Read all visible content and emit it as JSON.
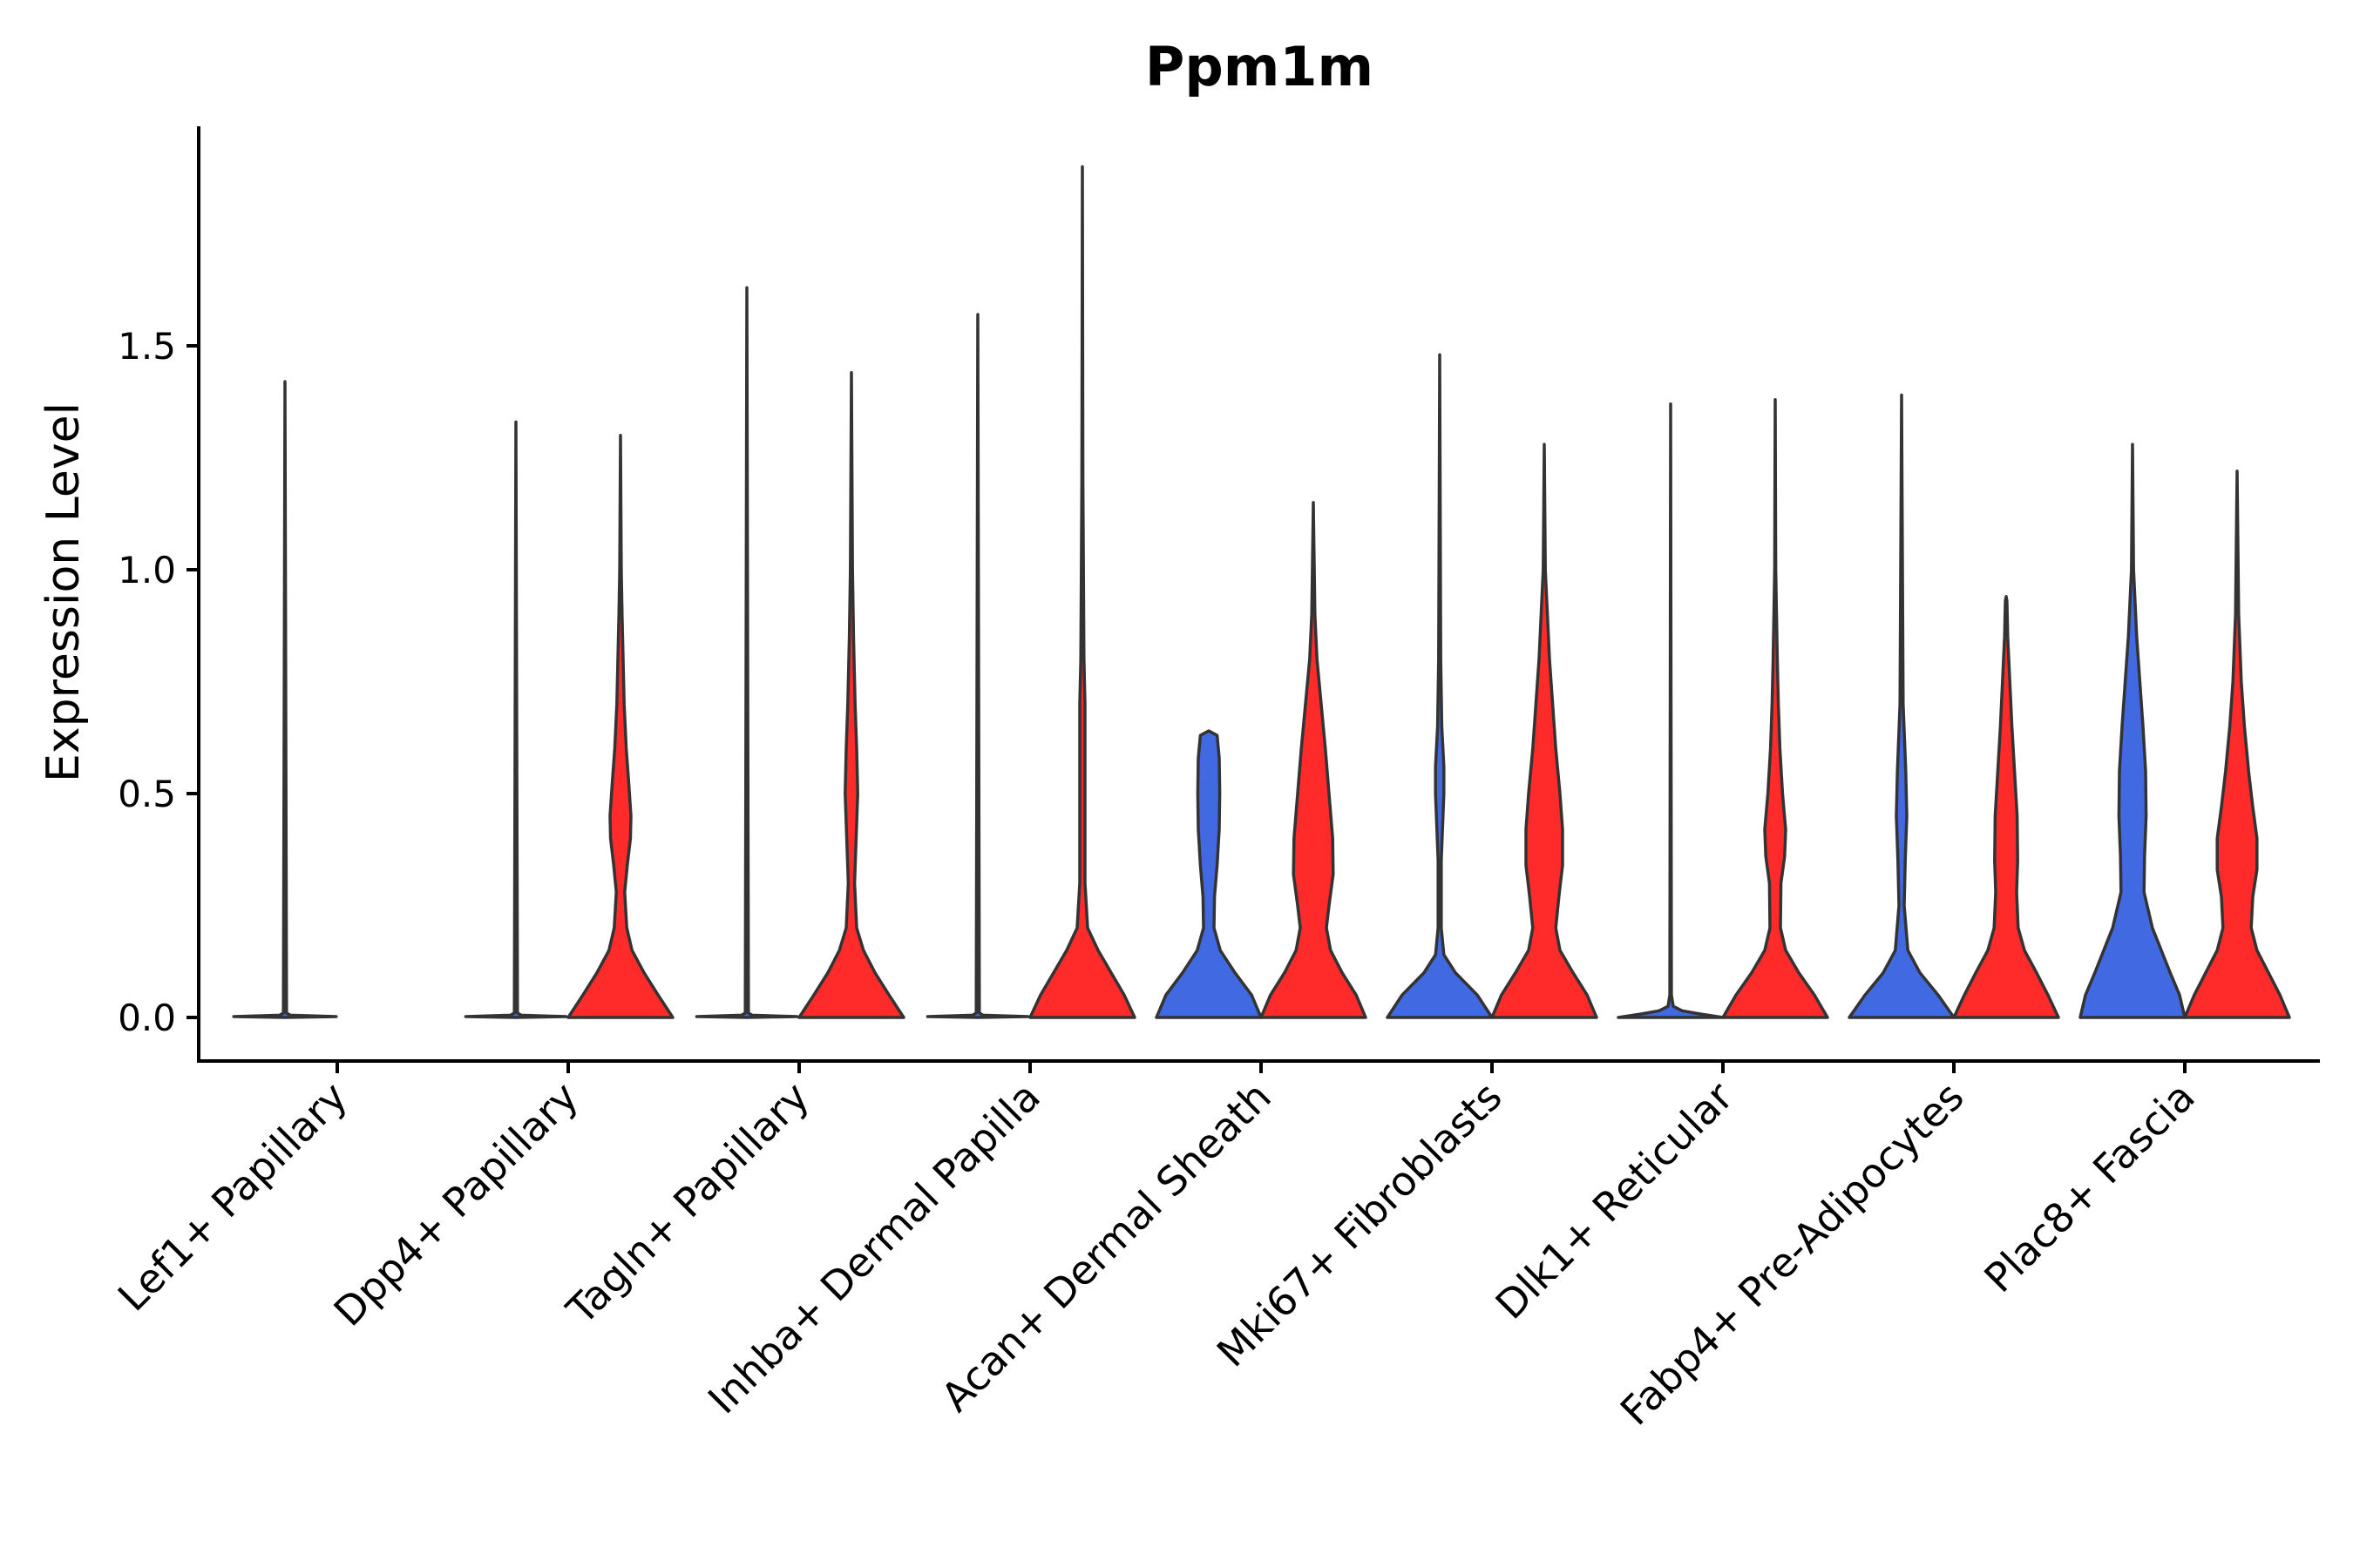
{
  "chart_data": {
    "type": "violin",
    "title": "Ppm1m",
    "xlabel": "",
    "ylabel": "Expression Level",
    "ylim": [
      -0.1,
      2.0
    ],
    "yticks": [
      0.0,
      0.5,
      1.0,
      1.5
    ],
    "ytick_labels": [
      "0.0",
      "0.5",
      "1.0",
      "1.5"
    ],
    "categories": [
      "Lef1+ Papillary",
      "Dpp4+ Papillary",
      "Tagln+ Papillary",
      "Inhba+ Dermal Papilla",
      "Acan+ Dermal Sheath",
      "Mki67+ Fibroblasts",
      "Dlk1+ Reticular",
      "Fabp4+ Pre-Adipocytes",
      "Plac8+ Fascia"
    ],
    "series": [
      {
        "name": "group-blue",
        "color": "#4169E1",
        "max_values": [
          1.42,
          1.33,
          1.63,
          1.57,
          0.64,
          1.48,
          1.37,
          1.39,
          1.28
        ],
        "profiles": [
          [
            [
              0,
              0.0
            ],
            [
              0.002,
              0.98
            ],
            [
              0.005,
              0.1
            ],
            [
              0.01,
              0.03
            ],
            [
              1.42,
              0.0
            ]
          ],
          [
            [
              0,
              0.0
            ],
            [
              0.002,
              0.96
            ],
            [
              0.005,
              0.1
            ],
            [
              0.01,
              0.03
            ],
            [
              1.33,
              0.0
            ]
          ],
          [
            [
              0,
              0.0
            ],
            [
              0.002,
              0.96
            ],
            [
              0.005,
              0.1
            ],
            [
              0.01,
              0.03
            ],
            [
              1.63,
              0.0
            ]
          ],
          [
            [
              0,
              0.0
            ],
            [
              0.002,
              0.96
            ],
            [
              0.005,
              0.1
            ],
            [
              0.01,
              0.03
            ],
            [
              1.57,
              0.0
            ]
          ],
          [
            [
              0,
              1.0
            ],
            [
              0.05,
              0.82
            ],
            [
              0.1,
              0.5
            ],
            [
              0.15,
              0.22
            ],
            [
              0.2,
              0.1
            ],
            [
              0.27,
              0.11
            ],
            [
              0.34,
              0.16
            ],
            [
              0.42,
              0.2
            ],
            [
              0.5,
              0.21
            ],
            [
              0.58,
              0.2
            ],
            [
              0.63,
              0.16
            ],
            [
              0.64,
              0.0
            ]
          ],
          [
            [
              0,
              1.0
            ],
            [
              0.05,
              0.72
            ],
            [
              0.1,
              0.3
            ],
            [
              0.14,
              0.08
            ],
            [
              0.2,
              0.03
            ],
            [
              0.35,
              0.03
            ],
            [
              0.5,
              0.08
            ],
            [
              0.56,
              0.08
            ],
            [
              0.65,
              0.04
            ],
            [
              0.8,
              0.02
            ],
            [
              1.48,
              0.0
            ]
          ],
          [
            [
              0,
              1.0
            ],
            [
              0.008,
              0.55
            ],
            [
              0.015,
              0.22
            ],
            [
              0.025,
              0.05
            ],
            [
              0.05,
              0.015
            ],
            [
              0.5,
              0.01
            ],
            [
              1.37,
              0.0
            ]
          ],
          [
            [
              0,
              1.0
            ],
            [
              0.05,
              0.7
            ],
            [
              0.1,
              0.35
            ],
            [
              0.15,
              0.12
            ],
            [
              0.25,
              0.05
            ],
            [
              0.35,
              0.07
            ],
            [
              0.45,
              0.1
            ],
            [
              0.55,
              0.08
            ],
            [
              0.7,
              0.03
            ],
            [
              1.39,
              0.0
            ]
          ],
          [
            [
              0,
              1.0
            ],
            [
              0.05,
              0.9
            ],
            [
              0.1,
              0.72
            ],
            [
              0.15,
              0.55
            ],
            [
              0.2,
              0.38
            ],
            [
              0.28,
              0.22
            ],
            [
              0.36,
              0.23
            ],
            [
              0.45,
              0.26
            ],
            [
              0.55,
              0.25
            ],
            [
              0.65,
              0.2
            ],
            [
              0.75,
              0.14
            ],
            [
              0.85,
              0.08
            ],
            [
              1.0,
              0.02
            ],
            [
              1.28,
              0.0
            ]
          ]
        ]
      },
      {
        "name": "group-red",
        "color": "#FF2A2A",
        "max_values": [
          null,
          1.3,
          1.44,
          1.9,
          1.15,
          1.28,
          1.38,
          0.94,
          1.22
        ],
        "profiles": [
          null,
          [
            [
              0,
              1.0
            ],
            [
              0.05,
              0.72
            ],
            [
              0.1,
              0.45
            ],
            [
              0.15,
              0.22
            ],
            [
              0.2,
              0.12
            ],
            [
              0.28,
              0.08
            ],
            [
              0.34,
              0.13
            ],
            [
              0.4,
              0.19
            ],
            [
              0.45,
              0.2
            ],
            [
              0.52,
              0.16
            ],
            [
              0.6,
              0.11
            ],
            [
              0.7,
              0.07
            ],
            [
              0.8,
              0.05
            ],
            [
              0.9,
              0.03
            ],
            [
              1.0,
              0.015
            ],
            [
              1.3,
              0.0
            ]
          ],
          [
            [
              0,
              1.0
            ],
            [
              0.05,
              0.72
            ],
            [
              0.1,
              0.45
            ],
            [
              0.15,
              0.23
            ],
            [
              0.2,
              0.1
            ],
            [
              0.3,
              0.06
            ],
            [
              0.4,
              0.09
            ],
            [
              0.5,
              0.12
            ],
            [
              0.6,
              0.1
            ],
            [
              0.7,
              0.07
            ],
            [
              0.85,
              0.04
            ],
            [
              1.0,
              0.02
            ],
            [
              1.44,
              0.0
            ]
          ],
          [
            [
              0,
              1.0
            ],
            [
              0.05,
              0.8
            ],
            [
              0.1,
              0.55
            ],
            [
              0.15,
              0.3
            ],
            [
              0.2,
              0.1
            ],
            [
              0.3,
              0.05
            ],
            [
              0.5,
              0.05
            ],
            [
              0.7,
              0.05
            ],
            [
              0.8,
              0.03
            ],
            [
              1.0,
              0.02
            ],
            [
              1.2,
              0.01
            ],
            [
              1.9,
              0.0
            ]
          ],
          [
            [
              0,
              1.0
            ],
            [
              0.05,
              0.82
            ],
            [
              0.1,
              0.55
            ],
            [
              0.15,
              0.33
            ],
            [
              0.2,
              0.25
            ],
            [
              0.25,
              0.3
            ],
            [
              0.32,
              0.38
            ],
            [
              0.4,
              0.37
            ],
            [
              0.5,
              0.3
            ],
            [
              0.6,
              0.23
            ],
            [
              0.7,
              0.15
            ],
            [
              0.8,
              0.07
            ],
            [
              0.9,
              0.03
            ],
            [
              1.15,
              0.0
            ]
          ],
          [
            [
              0,
              1.0
            ],
            [
              0.05,
              0.82
            ],
            [
              0.1,
              0.55
            ],
            [
              0.15,
              0.3
            ],
            [
              0.2,
              0.22
            ],
            [
              0.27,
              0.28
            ],
            [
              0.34,
              0.35
            ],
            [
              0.42,
              0.35
            ],
            [
              0.5,
              0.3
            ],
            [
              0.6,
              0.22
            ],
            [
              0.7,
              0.16
            ],
            [
              0.8,
              0.1
            ],
            [
              0.9,
              0.06
            ],
            [
              1.0,
              0.02
            ],
            [
              1.28,
              0.0
            ]
          ],
          [
            [
              0,
              1.0
            ],
            [
              0.05,
              0.75
            ],
            [
              0.1,
              0.45
            ],
            [
              0.15,
              0.2
            ],
            [
              0.2,
              0.1
            ],
            [
              0.3,
              0.11
            ],
            [
              0.36,
              0.18
            ],
            [
              0.42,
              0.2
            ],
            [
              0.5,
              0.14
            ],
            [
              0.6,
              0.09
            ],
            [
              0.7,
              0.06
            ],
            [
              0.8,
              0.04
            ],
            [
              1.0,
              0.01
            ],
            [
              1.38,
              0.0
            ]
          ],
          [
            [
              0,
              1.0
            ],
            [
              0.05,
              0.8
            ],
            [
              0.1,
              0.58
            ],
            [
              0.15,
              0.35
            ],
            [
              0.2,
              0.23
            ],
            [
              0.28,
              0.2
            ],
            [
              0.35,
              0.22
            ],
            [
              0.45,
              0.21
            ],
            [
              0.55,
              0.16
            ],
            [
              0.65,
              0.11
            ],
            [
              0.75,
              0.07
            ],
            [
              0.85,
              0.03
            ],
            [
              0.93,
              0.015
            ],
            [
              0.94,
              0.0
            ]
          ],
          [
            [
              0,
              1.0
            ],
            [
              0.05,
              0.82
            ],
            [
              0.1,
              0.6
            ],
            [
              0.15,
              0.38
            ],
            [
              0.2,
              0.27
            ],
            [
              0.27,
              0.3
            ],
            [
              0.33,
              0.38
            ],
            [
              0.4,
              0.38
            ],
            [
              0.47,
              0.3
            ],
            [
              0.55,
              0.22
            ],
            [
              0.65,
              0.14
            ],
            [
              0.75,
              0.08
            ],
            [
              0.9,
              0.03
            ],
            [
              1.22,
              0.0
            ]
          ]
        ]
      }
    ]
  }
}
